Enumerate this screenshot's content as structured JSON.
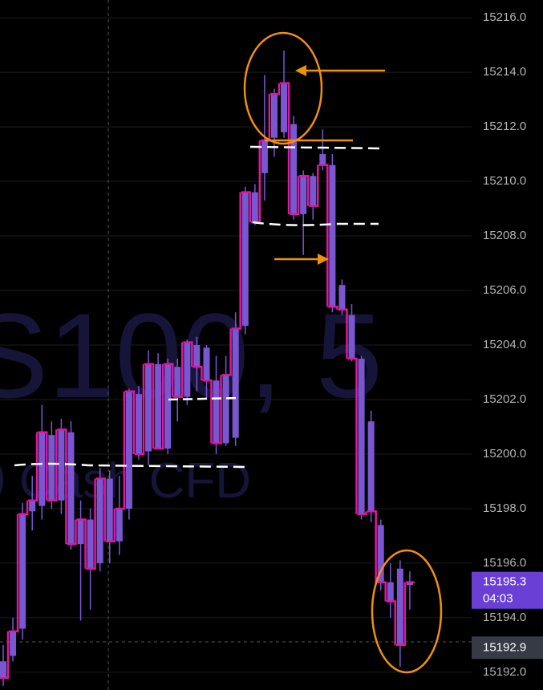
{
  "chart_data": {
    "type": "candlestick",
    "watermark_symbol": "S100, 5",
    "watermark_name": "0 Cash CFD",
    "open": [
      15192.4,
      15192.6,
      15193.6,
      15197.9,
      15198.1,
      15200.7,
      15198.3,
      15200.8,
      15196.7,
      15197.6,
      15196.0,
      15199.1,
      15196.8,
      15198.0,
      15202.2,
      15200.1,
      15203.3,
      15200.2,
      15203.2,
      15202.1,
      15204.0,
      15203.9,
      15202.7,
      15200.4,
      15200.6,
      15204.7,
      15209.6,
      15210.3,
      15211.6,
      15211.8,
      15212.1,
      15208.8,
      15210.2,
      15211.0,
      15210.6,
      15206.2,
      15205.1,
      15203.5,
      15201.2,
      15197.4,
      15195.3,
      15195.8,
      15195.2
    ],
    "high": [
      15193.0,
      15194.0,
      15198.2,
      15199.2,
      15201.8,
      15201.2,
      15201.3,
      15201.2,
      15198.3,
      15198.0,
      15199.5,
      15199.4,
      15199.2,
      15202.4,
      15202.5,
      15203.8,
      15203.7,
      15203.5,
      15203.5,
      15204.2,
      15204.3,
      15204.0,
      15203.6,
      15203.6,
      15205.2,
      15209.8,
      15209.9,
      15213.9,
      15213.4,
      15214.8,
      15212.4,
      15210.4,
      15210.3,
      15211.9,
      15211.0,
      15206.4,
      15205.5,
      15203.6,
      15201.6,
      15197.6,
      15196.0,
      15196.1,
      15195.7
    ],
    "low": [
      15191.5,
      15192.4,
      15193.2,
      15197.2,
      15197.6,
      15198.0,
      15197.8,
      15196.5,
      15193.9,
      15194.3,
      15195.7,
      15196.0,
      15196.3,
      15197.6,
      15199.8,
      15199.6,
      15200.2,
      15200.0,
      15201.2,
      15201.8,
      15202.3,
      15202.0,
      15200.0,
      15200.3,
      15200.3,
      15204.4,
      15208.4,
      15209.3,
      15210.9,
      15211.6,
      15208.6,
      15207.3,
      15208.6,
      15210.4,
      15205.2,
      15205.1,
      15203.4,
      15197.6,
      15197.5,
      15195.0,
      15194.0,
      15192.2,
      15194.3
    ],
    "close": [
      15191.8,
      15193.5,
      15197.8,
      15198.3,
      15200.8,
      15198.3,
      15200.9,
      15196.7,
      15197.6,
      15195.8,
      15199.1,
      15196.8,
      15198.0,
      15202.3,
      15200.0,
      15203.3,
      15200.2,
      15203.3,
      15202.1,
      15204.1,
      15203.2,
      15202.7,
      15200.4,
      15202.9,
      15204.6,
      15209.6,
      15208.5,
      15211.5,
      15213.2,
      15213.6,
      15208.8,
      15210.2,
      15209.1,
      15210.6,
      15205.4,
      15205.3,
      15203.5,
      15197.8,
      15197.9,
      15195.3,
      15194.6,
      15193.0,
      15195.3
    ],
    "color": "#7a57d1",
    "step_color": "#e0179f",
    "ylim": [
      15191.35,
      15216.65
    ],
    "yticks": [
      {
        "value": 15192,
        "label": "15192.0"
      },
      {
        "value": 15194,
        "label": "15194.0"
      },
      {
        "value": 15196,
        "label": "15196.0"
      },
      {
        "value": 15198,
        "label": "15198.0"
      },
      {
        "value": 15200,
        "label": "15200.0"
      },
      {
        "value": 15202,
        "label": "15202.0"
      },
      {
        "value": 15204,
        "label": "15204.0"
      },
      {
        "value": 15206,
        "label": "15206.0"
      },
      {
        "value": 15208,
        "label": "15208.0"
      },
      {
        "value": 15210,
        "label": "15210.0"
      },
      {
        "value": 15212,
        "label": "15212.0"
      },
      {
        "value": 15214,
        "label": "15214.0"
      },
      {
        "value": 15216,
        "label": "15216.0"
      }
    ],
    "grid": true,
    "last_price": 15195.3,
    "countdown": "04:03",
    "crosshair_price": 15192.9
  }
}
